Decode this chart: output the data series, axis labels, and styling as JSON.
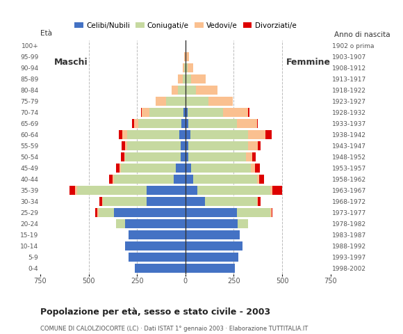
{
  "age_groups": [
    "0-4",
    "5-9",
    "10-14",
    "15-19",
    "20-24",
    "25-29",
    "30-34",
    "35-39",
    "40-44",
    "45-49",
    "50-54",
    "55-59",
    "60-64",
    "65-69",
    "70-74",
    "75-79",
    "80-84",
    "85-89",
    "90-94",
    "95-99",
    "100+"
  ],
  "birth_years": [
    "1998-2002",
    "1993-1997",
    "1988-1992",
    "1983-1987",
    "1978-1982",
    "1973-1977",
    "1968-1972",
    "1963-1967",
    "1958-1962",
    "1953-1957",
    "1948-1952",
    "1943-1947",
    "1938-1942",
    "1933-1937",
    "1928-1932",
    "1923-1927",
    "1918-1922",
    "1913-1917",
    "1908-1912",
    "1903-1907",
    "1902 o prima"
  ],
  "male": {
    "celibi": [
      260,
      295,
      310,
      295,
      310,
      370,
      200,
      200,
      60,
      50,
      25,
      25,
      30,
      20,
      10,
      0,
      0,
      0,
      0,
      0,
      0
    ],
    "coniugati": [
      0,
      0,
      0,
      0,
      50,
      80,
      225,
      360,
      310,
      285,
      285,
      275,
      270,
      225,
      175,
      100,
      40,
      15,
      5,
      0,
      0
    ],
    "vedovi": [
      0,
      0,
      0,
      0,
      0,
      5,
      5,
      10,
      5,
      5,
      5,
      10,
      25,
      20,
      40,
      55,
      30,
      25,
      10,
      5,
      0
    ],
    "divorziati": [
      0,
      0,
      0,
      0,
      0,
      10,
      15,
      30,
      20,
      20,
      20,
      20,
      20,
      10,
      5,
      0,
      0,
      0,
      0,
      0,
      0
    ]
  },
  "female": {
    "nubili": [
      255,
      275,
      295,
      280,
      270,
      265,
      100,
      60,
      40,
      30,
      15,
      15,
      25,
      15,
      10,
      0,
      0,
      0,
      0,
      0,
      0
    ],
    "coniugate": [
      0,
      0,
      0,
      0,
      55,
      175,
      270,
      380,
      330,
      310,
      300,
      310,
      300,
      250,
      185,
      120,
      55,
      30,
      10,
      5,
      0
    ],
    "vedove": [
      0,
      0,
      0,
      0,
      0,
      5,
      5,
      10,
      10,
      20,
      30,
      50,
      90,
      105,
      130,
      125,
      110,
      75,
      30,
      15,
      2
    ],
    "divorziate": [
      0,
      0,
      0,
      0,
      0,
      5,
      15,
      50,
      25,
      25,
      20,
      15,
      30,
      5,
      5,
      0,
      0,
      0,
      0,
      0,
      0
    ]
  },
  "colors": {
    "celibi": "#4472c4",
    "coniugati": "#c6d9a0",
    "vedovi": "#fac090",
    "divorziati": "#dd0000"
  },
  "title": "Popolazione per età, sesso e stato civile - 2003",
  "subtitle": "COMUNE DI CALOLZIOCORTE (LC) · Dati ISTAT 1° gennaio 2003 · Elaborazione TUTTITALIA.IT",
  "label_maschi": "Maschi",
  "label_femmine": "Femmine",
  "label_eta": "Età",
  "label_anno": "Anno di nascita",
  "xlim": 750,
  "background_color": "#ffffff",
  "legend_labels": [
    "Celibi/Nubili",
    "Coniugati/e",
    "Vedovi/e",
    "Divorziati/e"
  ]
}
